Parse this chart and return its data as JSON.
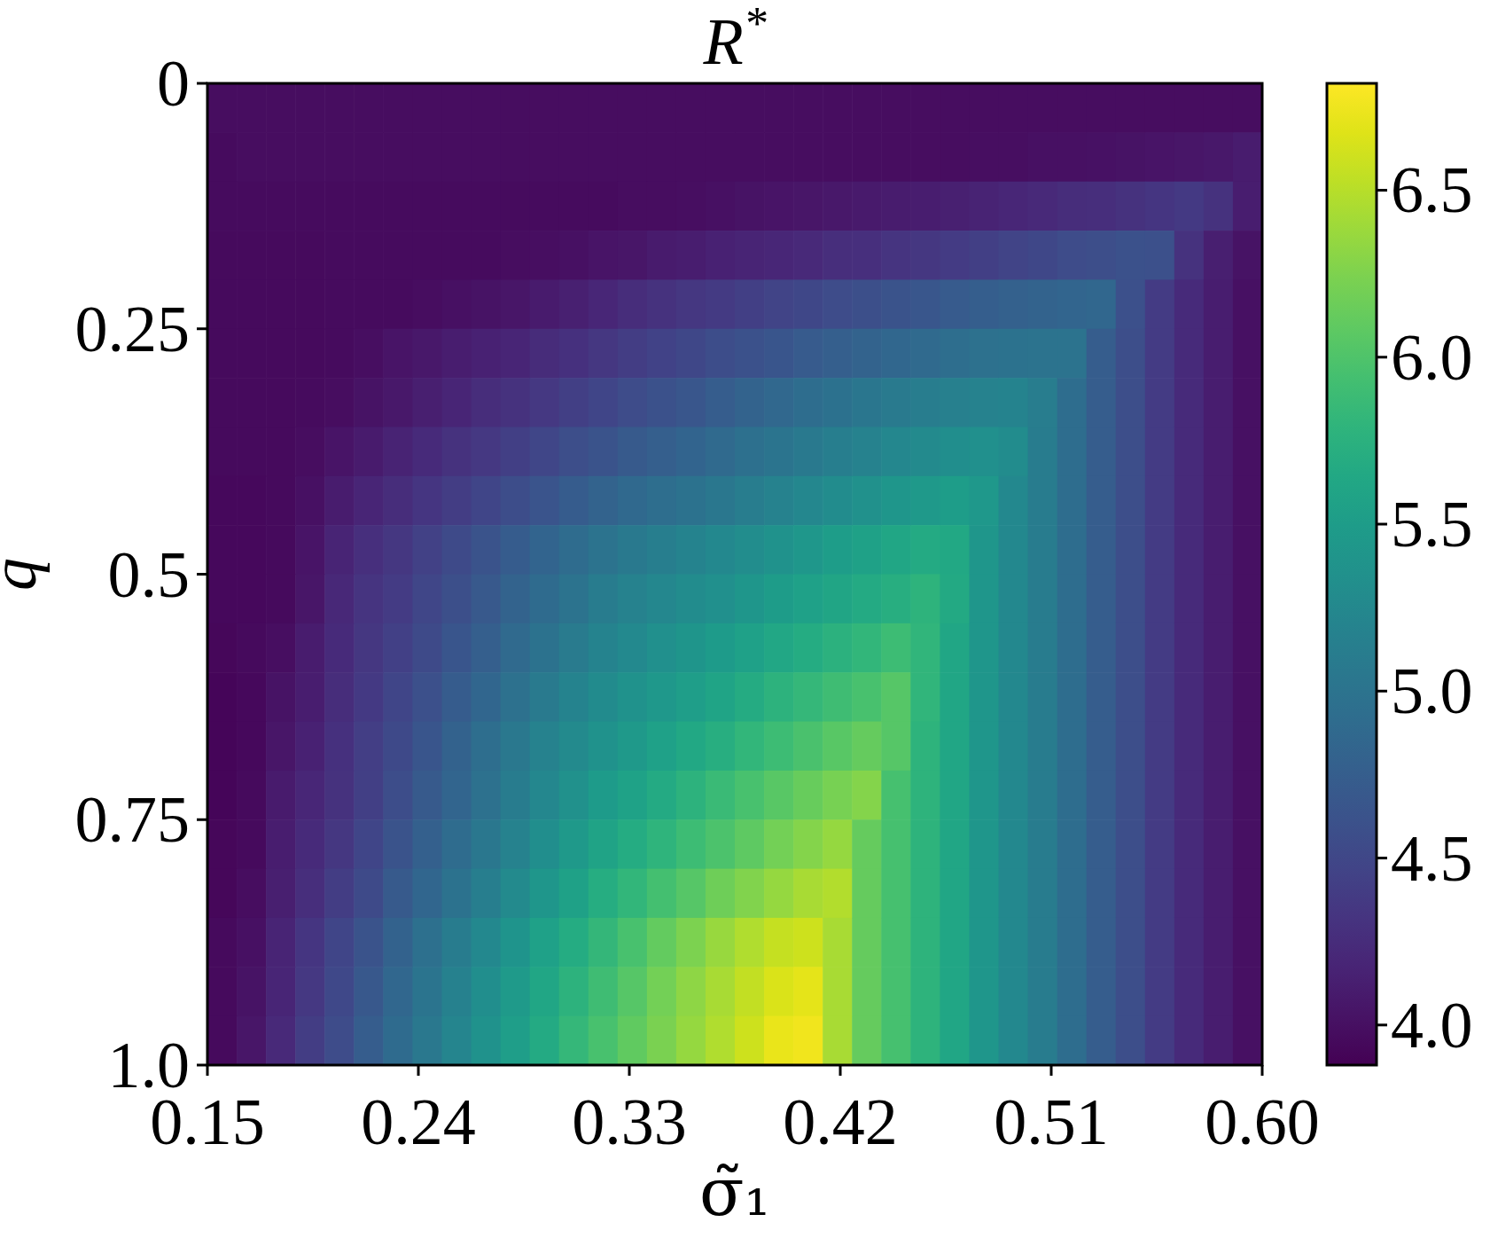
{
  "chart_data": {
    "type": "heatmap",
    "title": "R$^{*}$",
    "xlabel": "σ̃₁",
    "ylabel": "q",
    "xlim": [
      0.15,
      0.6
    ],
    "xticks": [
      0.15,
      0.24,
      0.33,
      0.42,
      0.51,
      {
        "value": 0.6,
        "label": "0.60"
      }
    ],
    "ylim": [
      1,
      0
    ],
    "yticks": [
      0,
      0.25,
      0.5,
      0.75,
      {
        "value": 1,
        "label": "1.0"
      }
    ],
    "clim": [
      3.88,
      6.82
    ],
    "cticks": [
      {
        "value": 4,
        "label": "4.0"
      },
      4.5,
      {
        "value": 5,
        "label": "5.0"
      },
      5.5,
      {
        "value": 6,
        "label": "6.0"
      },
      6.5
    ],
    "cells": [
      [
        3.98,
        3.98,
        3.98,
        3.98,
        3.98,
        3.98,
        3.98,
        3.98,
        3.98,
        3.98,
        3.98,
        3.98,
        3.98,
        3.98,
        3.98,
        3.98,
        3.98,
        3.98,
        3.98,
        3.98,
        3.98,
        3.98,
        3.98,
        3.98,
        3.98,
        3.98,
        3.98,
        3.98,
        3.98,
        3.98,
        3.98,
        3.98,
        3.98,
        3.98,
        3.98,
        3.98
      ],
      [
        3.97,
        3.98,
        3.98,
        3.98,
        3.98,
        3.98,
        3.98,
        3.98,
        3.98,
        3.98,
        3.98,
        3.98,
        3.98,
        3.98,
        3.98,
        3.98,
        3.98,
        3.98,
        3.98,
        3.98,
        3.98,
        3.98,
        3.98,
        3.98,
        3.98,
        3.98,
        3.99,
        3.99,
        4.0,
        4.0,
        4.01,
        4.02,
        4.03,
        4.05,
        4.07,
        4.1
      ],
      [
        3.97,
        3.97,
        3.97,
        3.97,
        3.97,
        3.97,
        3.97,
        3.97,
        3.97,
        3.97,
        3.97,
        3.97,
        3.97,
        3.97,
        3.98,
        3.98,
        3.99,
        4.0,
        4.02,
        4.03,
        4.05,
        4.07,
        4.08,
        4.1,
        4.12,
        4.14,
        4.16,
        4.2,
        4.22,
        4.25,
        4.27,
        4.3,
        4.33,
        4.37,
        4.3,
        4.12
      ],
      [
        3.96,
        3.96,
        3.96,
        3.96,
        3.97,
        3.97,
        3.97,
        3.97,
        3.97,
        3.97,
        3.98,
        3.99,
        4.0,
        4.03,
        4.05,
        4.09,
        4.12,
        4.15,
        4.17,
        4.2,
        4.22,
        4.26,
        4.28,
        4.32,
        4.35,
        4.39,
        4.43,
        4.47,
        4.51,
        4.55,
        4.58,
        4.61,
        4.6,
        4.3,
        4.13,
        4.02
      ],
      [
        3.96,
        3.96,
        3.96,
        3.96,
        3.97,
        3.97,
        3.97,
        3.98,
        4.0,
        4.02,
        4.05,
        4.09,
        4.14,
        4.2,
        4.25,
        4.3,
        4.34,
        4.38,
        4.43,
        4.47,
        4.51,
        4.55,
        4.59,
        4.63,
        4.67,
        4.71,
        4.75,
        4.78,
        4.81,
        4.83,
        4.85,
        4.6,
        4.39,
        4.23,
        4.11,
        4.0
      ],
      [
        3.95,
        3.95,
        3.96,
        3.96,
        3.97,
        3.99,
        4.03,
        4.07,
        4.11,
        4.15,
        4.19,
        4.24,
        4.29,
        4.35,
        4.4,
        4.46,
        4.51,
        4.56,
        4.61,
        4.66,
        4.71,
        4.76,
        4.81,
        4.85,
        4.89,
        4.93,
        4.97,
        4.99,
        5.0,
        5.0,
        4.73,
        4.57,
        4.39,
        4.23,
        4.11,
        4.0
      ],
      [
        3.95,
        3.95,
        3.96,
        3.97,
        3.98,
        4.02,
        4.07,
        4.13,
        4.19,
        4.25,
        4.3,
        4.36,
        4.42,
        4.48,
        4.55,
        4.61,
        4.67,
        4.73,
        4.8,
        4.86,
        4.92,
        4.98,
        5.03,
        5.08,
        5.12,
        5.15,
        5.18,
        5.2,
        5.12,
        4.92,
        4.73,
        4.57,
        4.39,
        4.23,
        4.11,
        4.0
      ],
      [
        3.95,
        3.95,
        3.96,
        3.98,
        4.03,
        4.09,
        4.16,
        4.23,
        4.3,
        4.36,
        4.43,
        4.5,
        4.57,
        4.63,
        4.7,
        4.76,
        4.82,
        4.88,
        4.95,
        5.01,
        5.07,
        5.13,
        5.18,
        5.24,
        5.28,
        5.32,
        5.35,
        5.3,
        5.1,
        4.92,
        4.73,
        4.57,
        4.39,
        4.23,
        4.11,
        4.0
      ],
      [
        3.94,
        3.94,
        3.96,
        4.0,
        4.1,
        4.18,
        4.25,
        4.33,
        4.4,
        4.48,
        4.56,
        4.64,
        4.72,
        4.8,
        4.87,
        4.93,
        4.99,
        5.05,
        5.12,
        5.18,
        5.24,
        5.3,
        5.36,
        5.42,
        5.46,
        5.51,
        5.45,
        5.25,
        5.1,
        4.92,
        4.73,
        4.57,
        4.39,
        4.23,
        4.11,
        4.0
      ],
      [
        3.94,
        3.94,
        3.95,
        4.03,
        4.17,
        4.28,
        4.35,
        4.45,
        4.54,
        4.63,
        4.72,
        4.82,
        4.91,
        5.0,
        5.07,
        5.13,
        5.19,
        5.25,
        5.31,
        5.38,
        5.44,
        5.5,
        5.56,
        5.62,
        5.67,
        5.64,
        5.43,
        5.25,
        5.1,
        4.92,
        4.73,
        4.57,
        4.39,
        4.23,
        4.11,
        4.0
      ],
      [
        3.94,
        3.94,
        3.96,
        4.05,
        4.21,
        4.32,
        4.39,
        4.49,
        4.59,
        4.69,
        4.8,
        4.9,
        5.0,
        5.1,
        5.17,
        5.24,
        5.3,
        5.35,
        5.42,
        5.49,
        5.55,
        5.61,
        5.67,
        5.72,
        5.78,
        5.65,
        5.43,
        5.25,
        5.1,
        4.92,
        4.73,
        4.57,
        4.39,
        4.23,
        4.11,
        4.0
      ],
      [
        3.93,
        3.95,
        3.99,
        4.1,
        4.23,
        4.34,
        4.44,
        4.54,
        4.65,
        4.76,
        4.88,
        4.99,
        5.09,
        5.19,
        5.26,
        5.34,
        5.41,
        5.48,
        5.55,
        5.63,
        5.69,
        5.76,
        5.82,
        5.89,
        5.8,
        5.62,
        5.43,
        5.25,
        5.1,
        4.92,
        4.73,
        4.57,
        4.39,
        4.23,
        4.11,
        4.0
      ],
      [
        3.92,
        3.94,
        4.02,
        4.12,
        4.25,
        4.37,
        4.48,
        4.6,
        4.72,
        4.84,
        4.96,
        5.08,
        5.19,
        5.29,
        5.37,
        5.45,
        5.52,
        5.6,
        5.68,
        5.77,
        5.84,
        5.91,
        5.97,
        6.04,
        5.8,
        5.62,
        5.43,
        5.25,
        5.1,
        4.92,
        4.73,
        4.57,
        4.39,
        4.23,
        4.11,
        4.0
      ],
      [
        3.92,
        3.94,
        4.05,
        4.15,
        4.29,
        4.41,
        4.53,
        4.65,
        4.79,
        4.93,
        5.06,
        5.18,
        5.28,
        5.38,
        5.46,
        5.55,
        5.64,
        5.72,
        5.81,
        5.9,
        5.98,
        6.06,
        6.13,
        6.05,
        5.78,
        5.62,
        5.43,
        5.25,
        5.1,
        4.92,
        4.73,
        4.57,
        4.39,
        4.23,
        4.11,
        4.0
      ],
      [
        3.92,
        3.95,
        4.09,
        4.2,
        4.3,
        4.42,
        4.56,
        4.7,
        4.83,
        4.97,
        5.1,
        5.24,
        5.36,
        5.48,
        5.57,
        5.67,
        5.77,
        5.87,
        5.96,
        6.06,
        6.14,
        6.22,
        6.28,
        5.95,
        5.78,
        5.62,
        5.43,
        5.25,
        5.1,
        4.92,
        4.73,
        4.57,
        4.39,
        4.23,
        4.11,
        4.0
      ],
      [
        3.93,
        3.96,
        4.11,
        4.23,
        4.34,
        4.48,
        4.63,
        4.77,
        4.91,
        5.05,
        5.18,
        5.32,
        5.46,
        5.58,
        5.69,
        5.79,
        5.89,
        5.99,
        6.09,
        6.19,
        6.27,
        6.35,
        6.13,
        5.95,
        5.78,
        5.62,
        5.43,
        5.25,
        5.1,
        4.92,
        4.73,
        4.57,
        4.39,
        4.23,
        4.11,
        4.0
      ],
      [
        3.93,
        3.98,
        4.13,
        4.27,
        4.4,
        4.54,
        4.7,
        4.84,
        4.99,
        5.13,
        5.28,
        5.42,
        5.56,
        5.7,
        5.82,
        5.94,
        6.05,
        6.17,
        6.26,
        6.36,
        6.43,
        6.48,
        6.13,
        5.95,
        5.78,
        5.62,
        5.43,
        5.25,
        5.1,
        4.92,
        4.73,
        4.57,
        4.39,
        4.23,
        4.11,
        4.0
      ],
      [
        3.95,
        4.0,
        4.17,
        4.33,
        4.48,
        4.63,
        4.79,
        4.95,
        5.1,
        5.25,
        5.4,
        5.55,
        5.69,
        5.83,
        5.97,
        6.11,
        6.24,
        6.37,
        6.47,
        6.56,
        6.6,
        6.44,
        6.13,
        5.95,
        5.78,
        5.62,
        5.43,
        5.25,
        5.1,
        4.92,
        4.73,
        4.57,
        4.39,
        4.23,
        4.11,
        4.0
      ],
      [
        3.95,
        4.02,
        4.18,
        4.36,
        4.52,
        4.68,
        4.85,
        5.01,
        5.16,
        5.32,
        5.47,
        5.62,
        5.77,
        5.91,
        6.05,
        6.19,
        6.32,
        6.44,
        6.55,
        6.65,
        6.7,
        6.44,
        6.13,
        5.95,
        5.78,
        5.62,
        5.43,
        5.25,
        5.1,
        4.92,
        4.73,
        4.57,
        4.39,
        4.23,
        4.11,
        4.0
      ],
      [
        3.95,
        4.05,
        4.22,
        4.4,
        4.55,
        4.73,
        4.9,
        5.06,
        5.22,
        5.38,
        5.52,
        5.67,
        5.84,
        5.97,
        6.1,
        6.23,
        6.36,
        6.47,
        6.6,
        6.72,
        6.76,
        6.44,
        6.13,
        5.95,
        5.78,
        5.62,
        5.43,
        5.25,
        5.1,
        4.92,
        4.73,
        4.57,
        4.39,
        4.23,
        4.11,
        4.0
      ]
    ]
  }
}
